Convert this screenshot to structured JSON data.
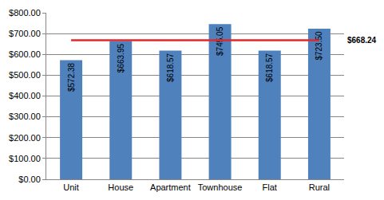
{
  "chart_data": {
    "type": "bar",
    "categories": [
      "Unit",
      "House",
      "Apartment",
      "Townhouse",
      "Flat",
      "Rural"
    ],
    "series": [
      {
        "type": "bar",
        "color": "#4f81bd",
        "values": [
          572.38,
          663.95,
          618.57,
          745.05,
          618.57,
          723.5
        ],
        "value_labels": [
          "$572.38",
          "$663.95",
          "$618.57",
          "$745.05",
          "$618.57",
          "$723.50"
        ]
      },
      {
        "type": "line",
        "color": "#e0282b",
        "values": [
          668.24,
          668.24,
          668.24,
          668.24,
          668.24,
          668.24
        ]
      }
    ],
    "annotations": [
      {
        "text": "$668.24",
        "y": 668.24
      }
    ],
    "ylim": [
      0,
      800
    ],
    "yticks": [
      {
        "value": 0,
        "label": "$0.00"
      },
      {
        "value": 100,
        "label": "$100.00"
      },
      {
        "value": 200,
        "label": "$200.00"
      },
      {
        "value": 300,
        "label": "$300.00"
      },
      {
        "value": 400,
        "label": "$400.00"
      },
      {
        "value": 500,
        "label": "$500.00"
      },
      {
        "value": 600,
        "label": "$600.00"
      },
      {
        "value": 700,
        "label": "$700.00"
      },
      {
        "value": 800,
        "label": "$800.00"
      }
    ],
    "grid": true,
    "data_labels": true
  }
}
